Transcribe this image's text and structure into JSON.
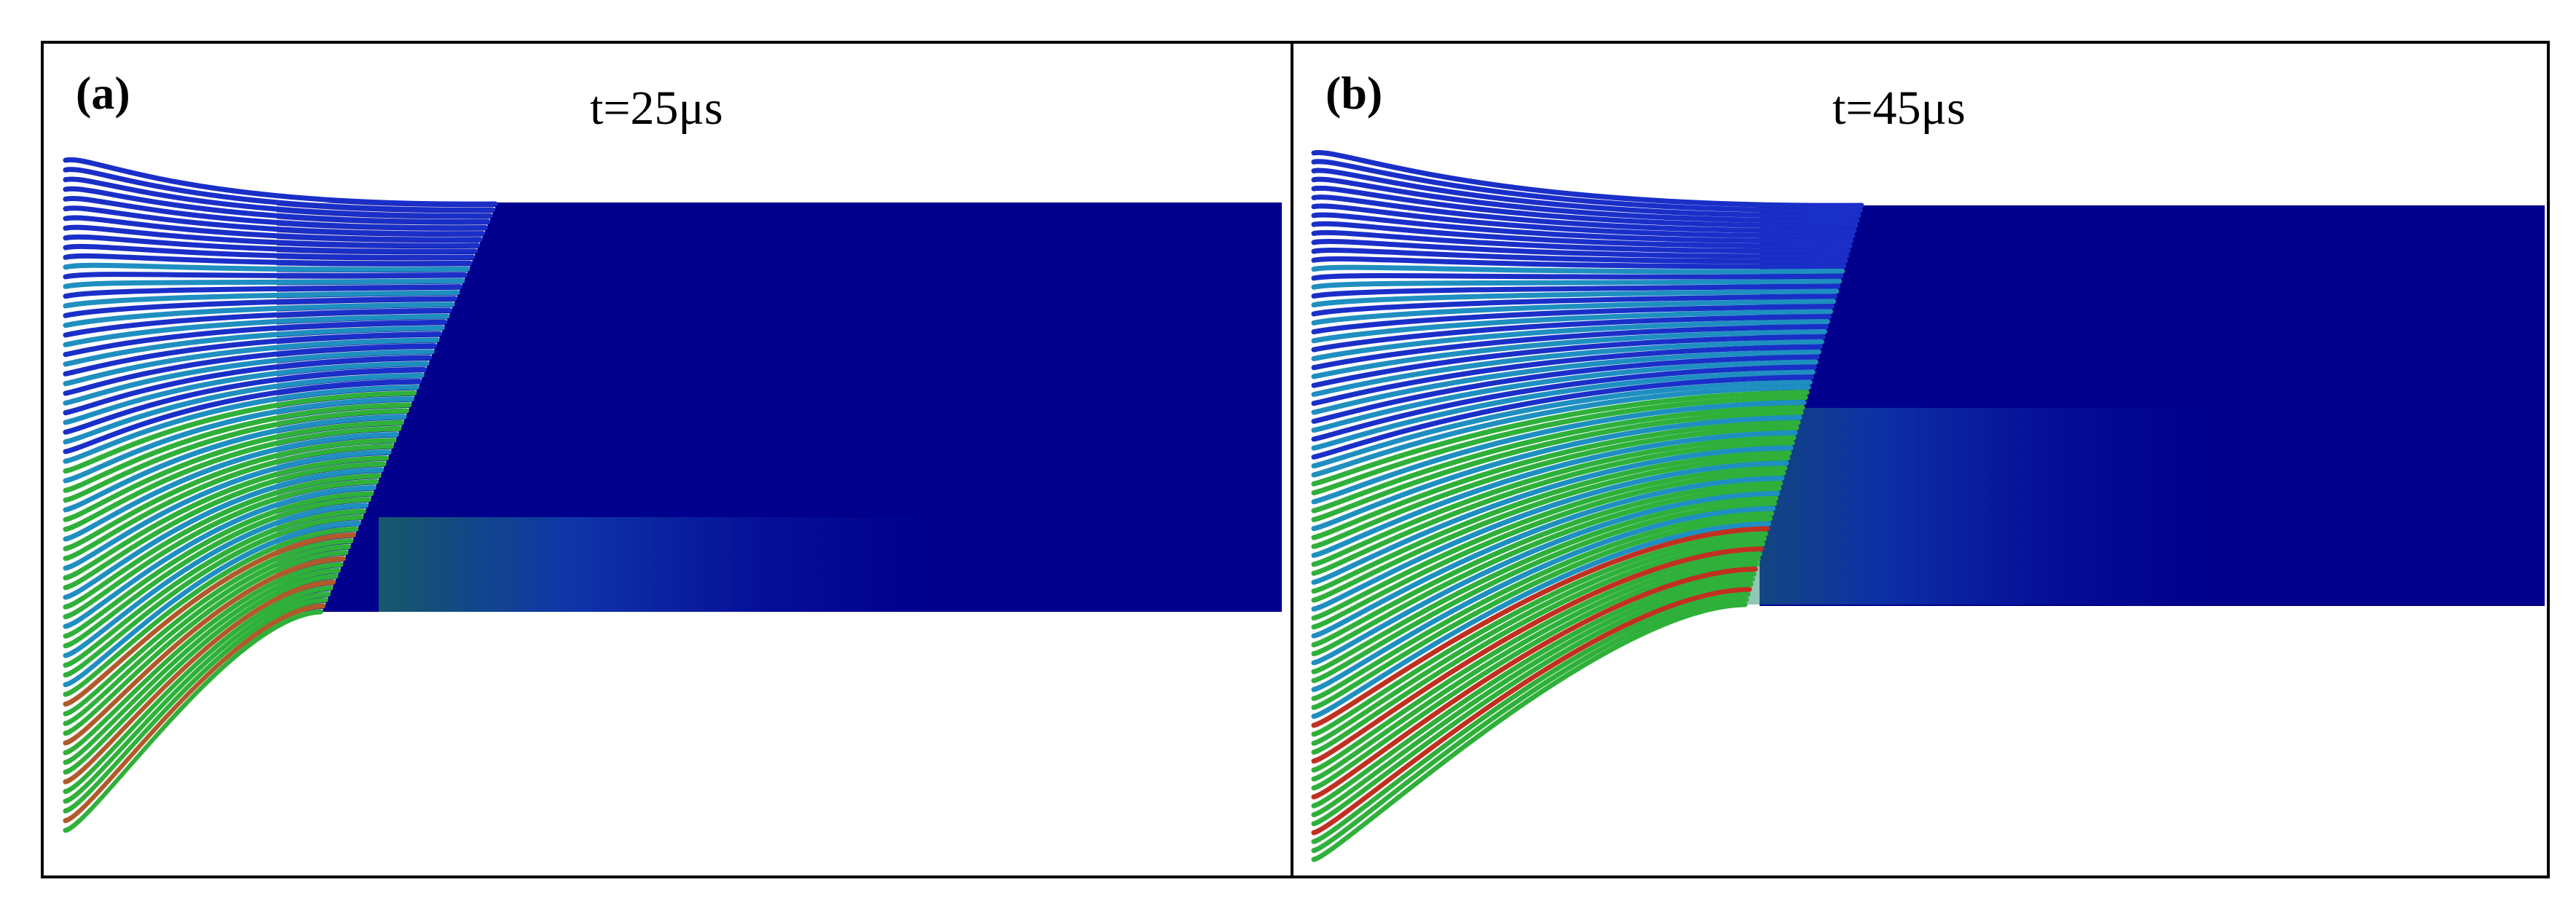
{
  "panels": [
    {
      "label": "(a)",
      "time": "t=25μs",
      "colors": {
        "bulk": "#00008c",
        "cold": "#1a2fc8",
        "cool": "#1e8fc0",
        "warm": "#2fb03a",
        "hot": "#b05a2a"
      }
    },
    {
      "label": "(b)",
      "time": "t=45μs",
      "colors": {
        "bulk": "#00008c",
        "cold": "#1a2fc8",
        "cool": "#1e8fc0",
        "warm": "#2fb03a",
        "hot": "#c03020"
      }
    }
  ]
}
